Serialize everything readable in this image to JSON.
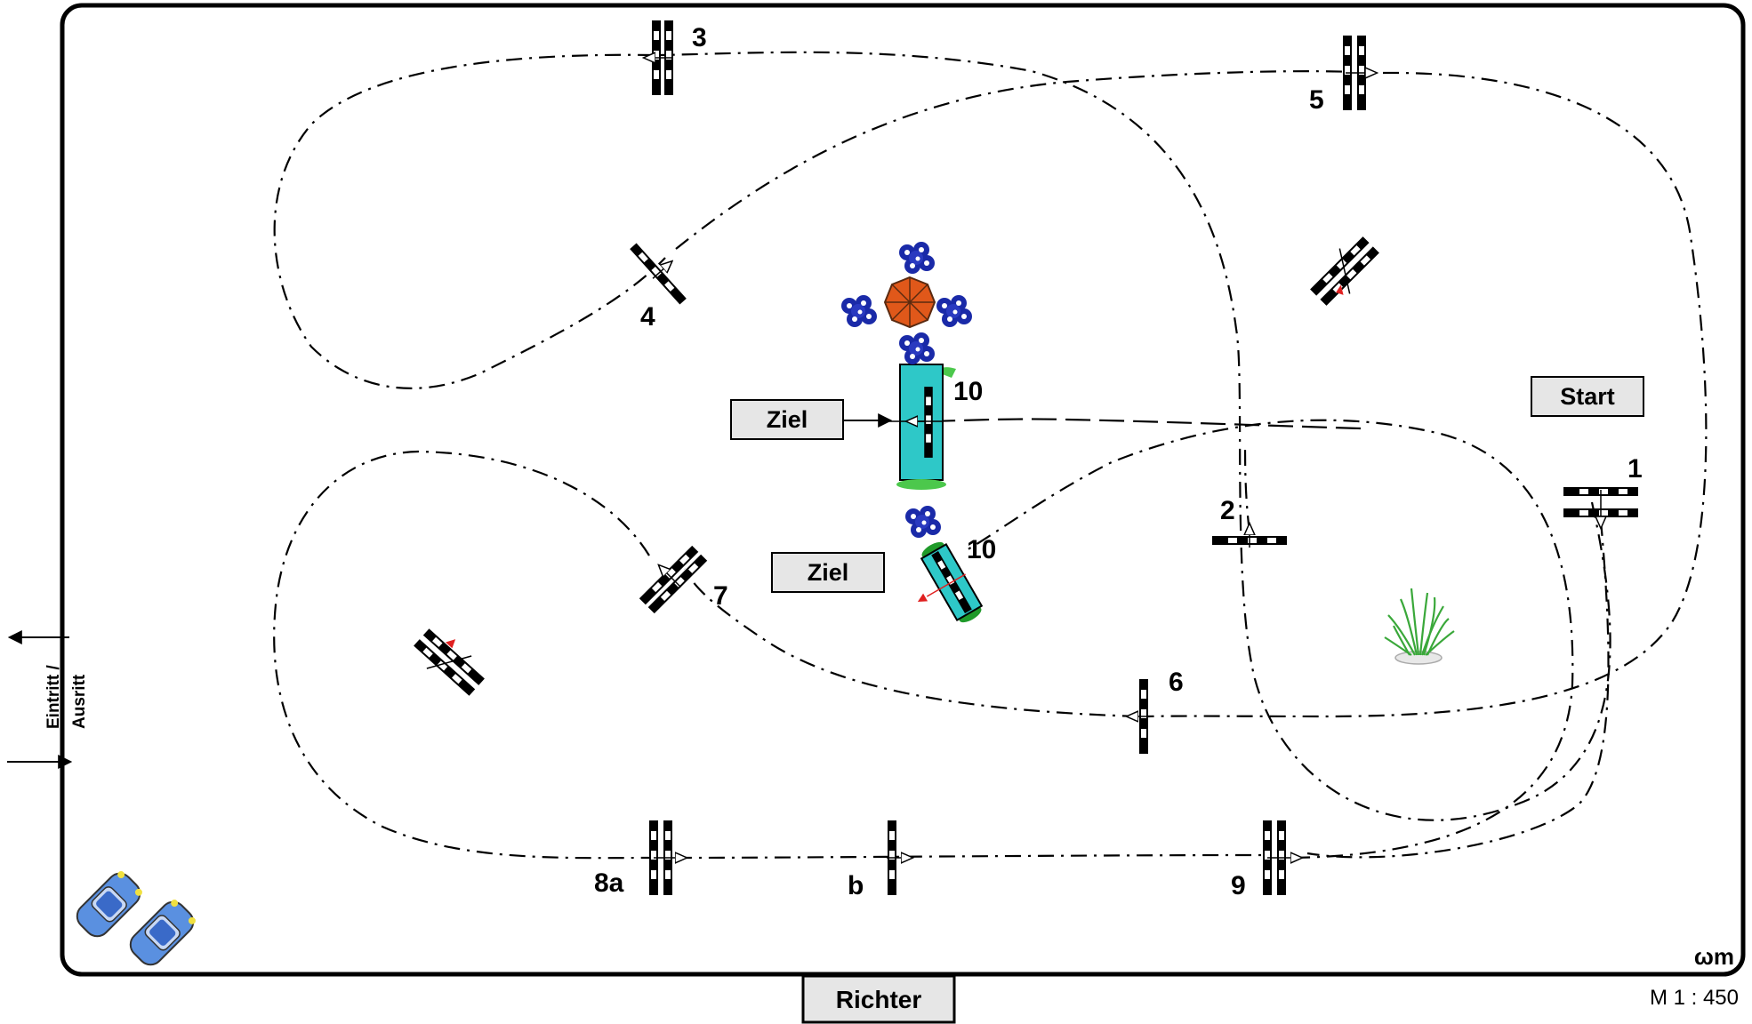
{
  "labels": {
    "start": "Start",
    "ziel_top": "Ziel",
    "ziel_bottom": "Ziel",
    "richter": "Richter",
    "eintritt": "Eintritt /",
    "ausritt": "Ausritt",
    "scale": "M 1 : 450",
    "signature": "ωm"
  },
  "obstacles": {
    "o1": "1",
    "o2": "2",
    "o3": "3",
    "o4": "4",
    "o5": "5",
    "o6": "6",
    "o7": "7",
    "o8a": "8a",
    "o8b": "b",
    "o9": "9",
    "o10a": "10",
    "o10b": "10"
  },
  "colors": {
    "water_box": "#2ec8c8",
    "umbrella": "#e0581a",
    "flowers": "#1a2aa8",
    "grass": "#4cc84c",
    "car": "#5a90e0",
    "label_box": "#e6e6e6"
  }
}
